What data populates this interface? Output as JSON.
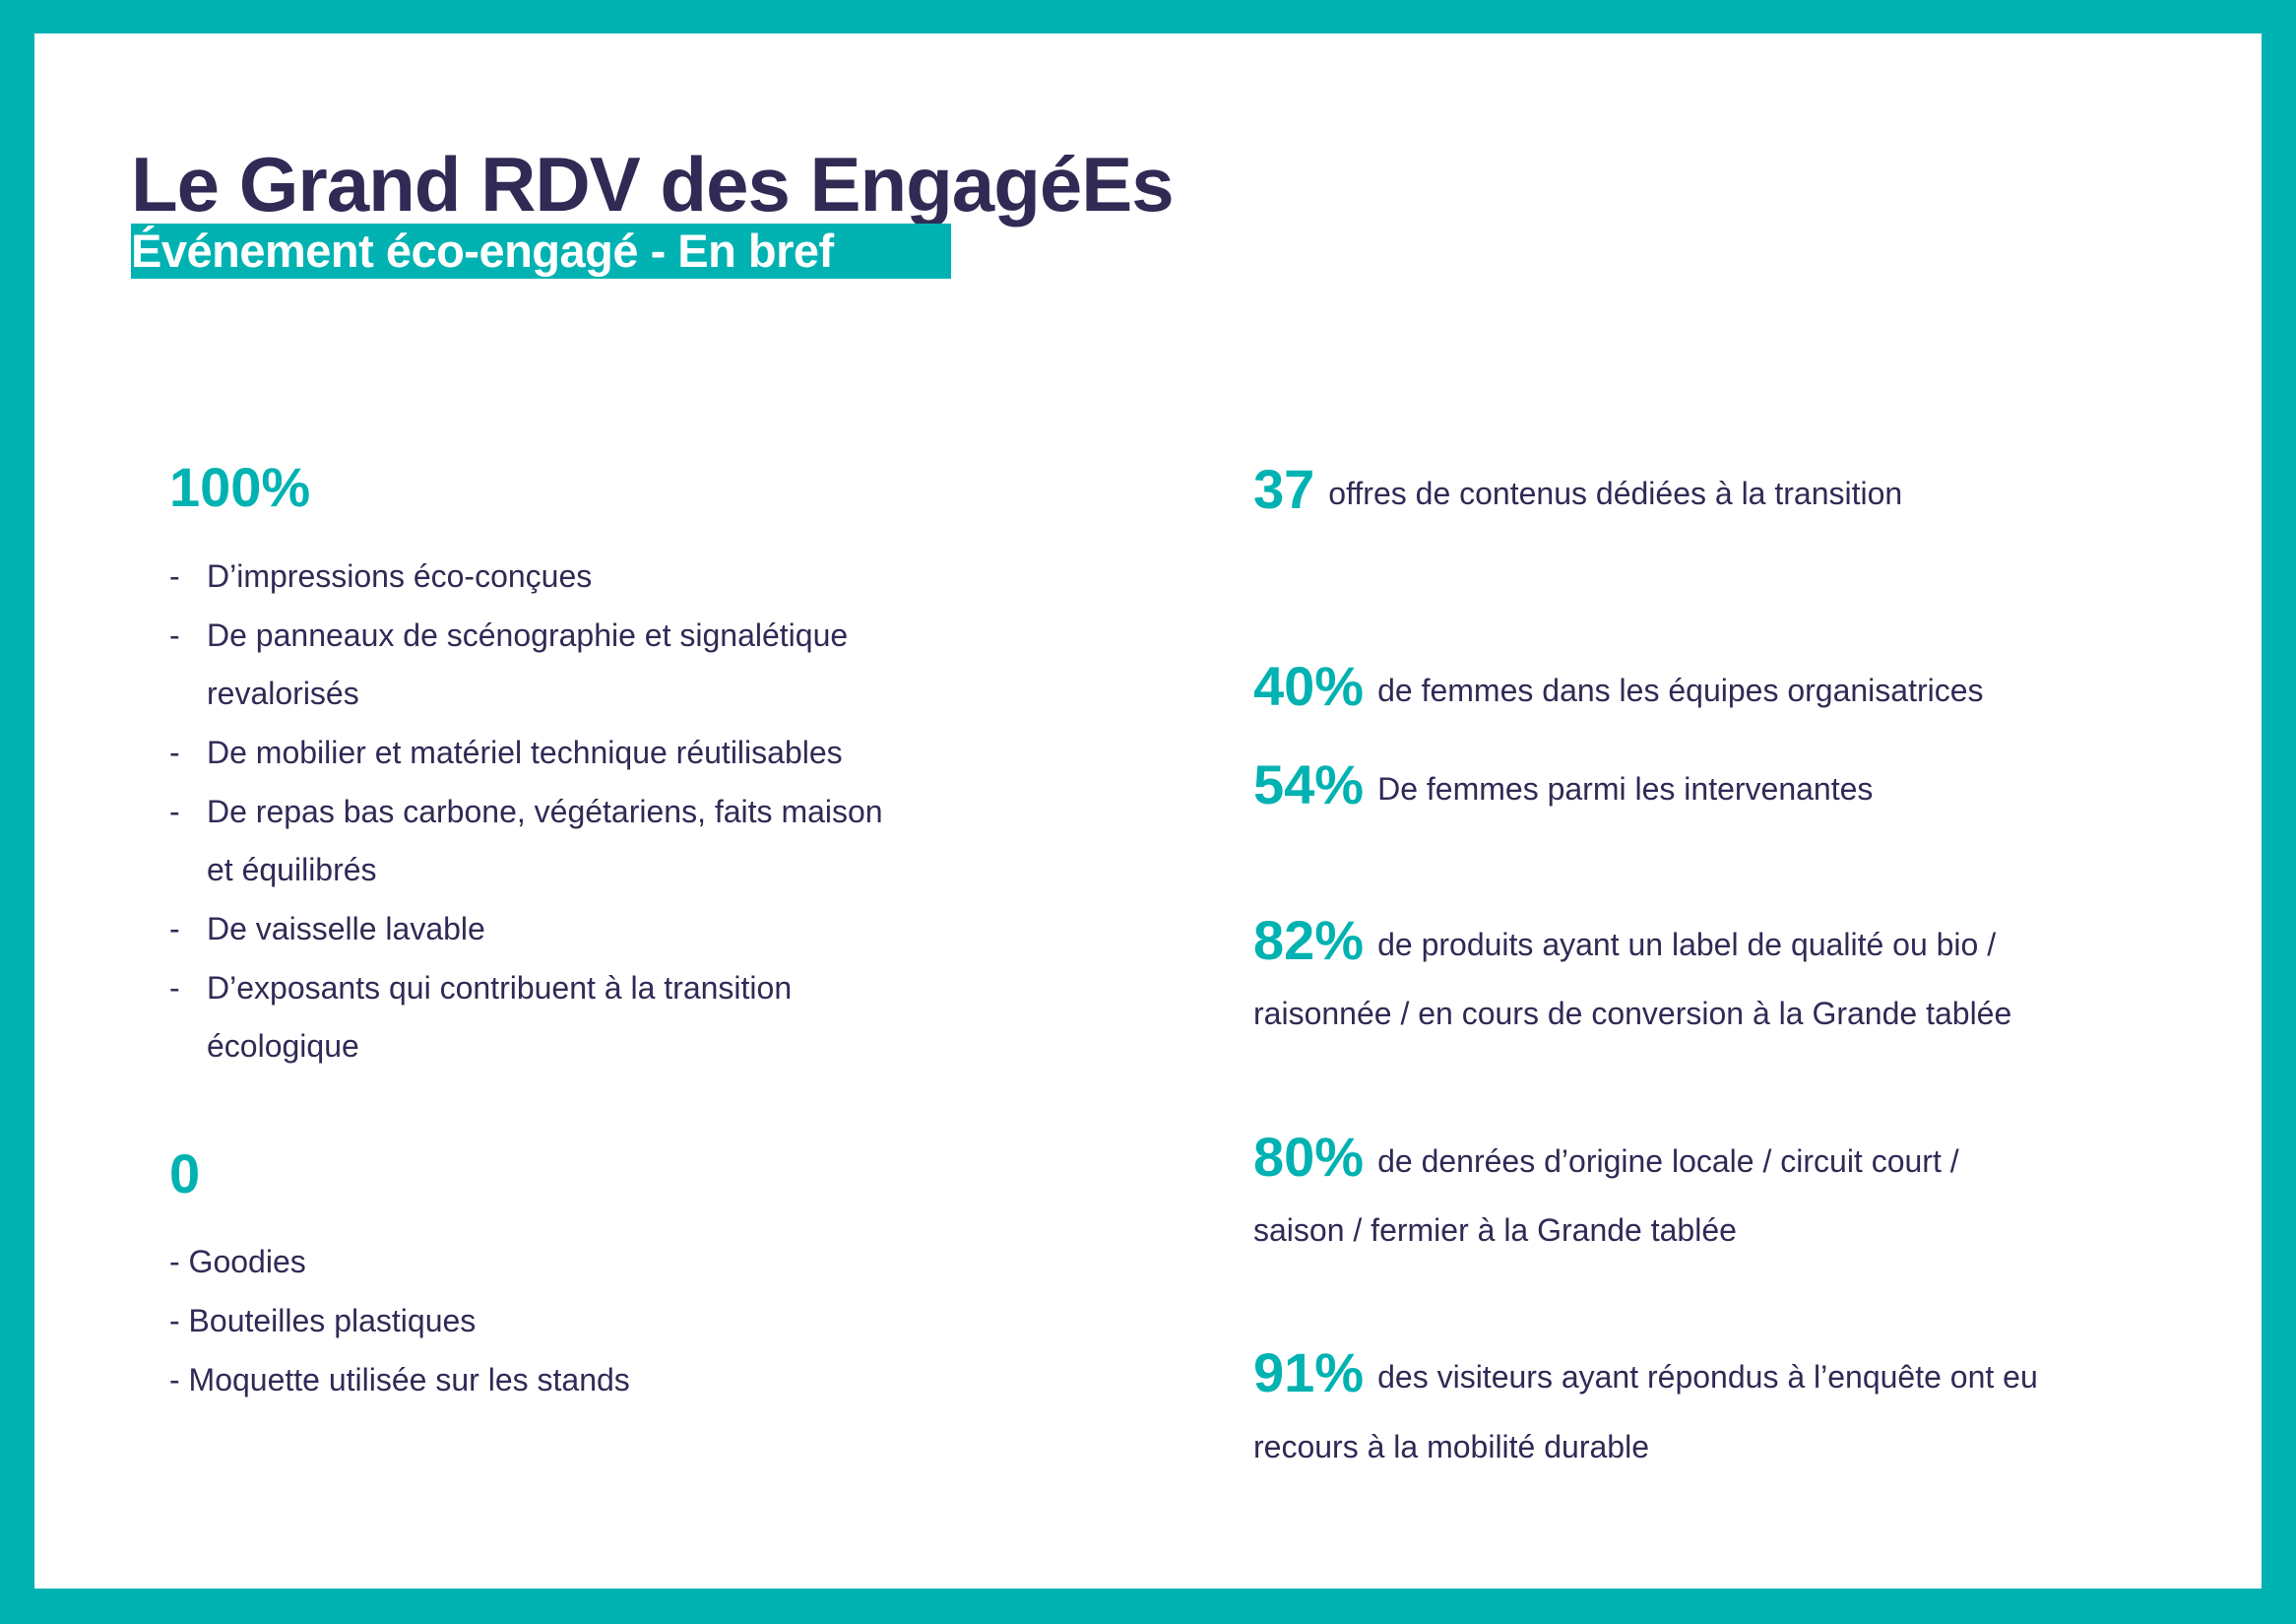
{
  "header": {
    "title": "Le Grand RDV des EngagéEs",
    "subtitle": "Événement éco-engagé - En bref"
  },
  "left": {
    "block1": {
      "figure": "100%",
      "items": [
        "D’impressions éco-conçues",
        "De panneaux de scénographie et signalétique",
        "revalorisés",
        "De mobilier et matériel technique réutilisables",
        "De repas bas carbone, végétariens, faits maison",
        "et équilibrés",
        "De vaisselle lavable",
        "D’exposants qui contribuent à la transition",
        "écologique"
      ]
    },
    "block2": {
      "figure": "0",
      "items": [
        "- Goodies",
        "- Bouteilles plastiques",
        "- Moquette utilisée sur les stands"
      ]
    }
  },
  "right": {
    "stats": [
      {
        "figure": "37",
        "line1": "offres de contenus dédiées à la transition"
      },
      {
        "figure": "40%",
        "line1": "de femmes dans les équipes organisatrices"
      },
      {
        "figure": "54%",
        "line1": "De femmes parmi les intervenantes"
      },
      {
        "figure": "82%",
        "line1": "de produits ayant un label de qualité ou bio /",
        "line2": "raisonnée / en cours de conversion à la Grande tablée"
      },
      {
        "figure": "80%",
        "line1": "de denrées d’origine locale / circuit court /",
        "line2": "saison / fermier à la Grande tablée"
      },
      {
        "figure": "91%",
        "line1": "des visiteurs ayant répondus à l’enquête ont eu",
        "line2": "recours à la mobilité durable"
      }
    ]
  },
  "colors": {
    "accent": "#00b2b1",
    "text": "#302a55",
    "background": "#ffffff"
  }
}
